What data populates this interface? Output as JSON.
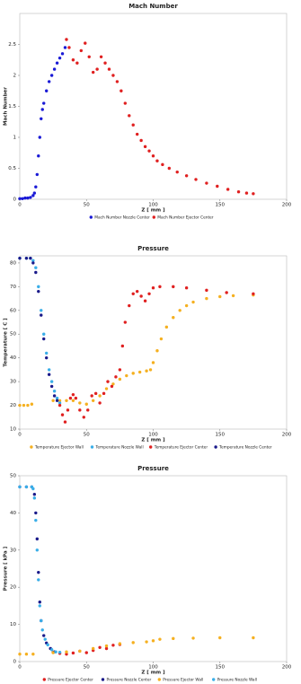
{
  "chart_data": [
    {
      "type": "scatter",
      "title": "Mach Number",
      "xlabel": "Z [ mm ]",
      "ylabel": "Mach Number",
      "xlim": [
        0,
        200
      ],
      "ylim": [
        0,
        3
      ],
      "xticks": [
        0,
        50,
        100,
        150,
        200
      ],
      "yticks": [
        0,
        0.5,
        1,
        1.5,
        2,
        2.5
      ],
      "series": [
        {
          "name": "Mach Number Nozzle Center",
          "color": "#1a1ad6",
          "x": [
            0,
            2,
            4,
            6,
            8,
            10,
            11,
            12,
            13,
            14,
            15,
            16,
            17,
            18,
            20,
            22,
            24,
            26,
            28,
            30,
            32,
            34
          ],
          "y": [
            0.01,
            0.01,
            0.02,
            0.02,
            0.03,
            0.06,
            0.1,
            0.2,
            0.4,
            0.7,
            1.0,
            1.3,
            1.45,
            1.55,
            1.75,
            1.9,
            2.0,
            2.1,
            2.2,
            2.28,
            2.35,
            2.45
          ]
        },
        {
          "name": "Mach Number Ejector Center",
          "color": "#e02020",
          "x": [
            35,
            37,
            40,
            43,
            46,
            49,
            52,
            55,
            58,
            61,
            64,
            67,
            70,
            73,
            76,
            79,
            82,
            85,
            88,
            91,
            94,
            97,
            100,
            103,
            107,
            112,
            118,
            125,
            132,
            140,
            148,
            156,
            164,
            170,
            175
          ],
          "y": [
            2.58,
            2.45,
            2.25,
            2.2,
            2.4,
            2.52,
            2.3,
            2.05,
            2.1,
            2.3,
            2.2,
            2.1,
            2.0,
            1.9,
            1.75,
            1.55,
            1.35,
            1.2,
            1.05,
            0.95,
            0.85,
            0.78,
            0.7,
            0.62,
            0.56,
            0.5,
            0.44,
            0.38,
            0.32,
            0.26,
            0.21,
            0.16,
            0.12,
            0.1,
            0.09
          ]
        }
      ]
    },
    {
      "type": "scatter",
      "title": "Pressure",
      "xlabel": "Z [ mm ]",
      "ylabel": "Temperature [ C ]",
      "xlim": [
        0,
        200
      ],
      "ylim": [
        10,
        83
      ],
      "xticks": [
        0,
        50,
        100,
        150,
        200
      ],
      "yticks": [
        10,
        20,
        30,
        40,
        50,
        60,
        70,
        80
      ],
      "series": [
        {
          "name": "Temperature Ejector Wall",
          "color": "#f5b020",
          "x": [
            0,
            3,
            6,
            9,
            25,
            30,
            35,
            40,
            45,
            50,
            55,
            60,
            65,
            70,
            75,
            80,
            85,
            90,
            95,
            98,
            100,
            103,
            106,
            110,
            115,
            120,
            125,
            130,
            140,
            150,
            160,
            175
          ],
          "y": [
            20,
            20,
            20,
            20.5,
            22,
            22,
            22,
            22,
            21,
            20.5,
            22,
            24,
            27,
            29,
            31,
            32.5,
            33.5,
            34,
            34.5,
            35,
            38,
            43,
            48,
            53,
            57,
            60,
            62,
            63.5,
            65,
            65.8,
            66.2,
            66.5
          ]
        },
        {
          "name": "Temperature Nozzle Wall",
          "color": "#3aaee8",
          "x": [
            0,
            5,
            8,
            10,
            12,
            14,
            16,
            18,
            20,
            22,
            24,
            26,
            28,
            30
          ],
          "y": [
            82,
            82,
            82,
            81,
            78,
            70,
            60,
            50,
            42,
            35,
            30,
            26,
            23,
            21
          ]
        },
        {
          "name": "Temperature Ejector Center",
          "color": "#e02020",
          "x": [
            30,
            32,
            34,
            36,
            38,
            40,
            42,
            45,
            48,
            51,
            54,
            57,
            60,
            63,
            66,
            69,
            72,
            75,
            77,
            79,
            82,
            85,
            88,
            91,
            94,
            97,
            100,
            105,
            115,
            125,
            140,
            155,
            175
          ],
          "y": [
            20,
            16,
            13,
            18,
            23,
            24.5,
            23,
            18,
            15,
            18,
            24,
            25,
            21,
            25,
            30,
            28,
            32,
            35,
            45,
            55,
            62,
            67,
            68,
            66,
            64,
            67,
            69.5,
            70,
            70,
            69.5,
            68.5,
            67.5,
            67
          ]
        },
        {
          "name": "Temperature Nozzle Center",
          "color": "#1a1a8a",
          "x": [
            0,
            5,
            8,
            10,
            12,
            14,
            16,
            18,
            20,
            22,
            24,
            26,
            28
          ],
          "y": [
            82,
            82,
            82,
            80,
            76,
            68,
            58,
            48,
            40,
            33,
            28,
            24,
            22
          ]
        }
      ]
    },
    {
      "type": "scatter",
      "title": "Pressure",
      "xlabel": "Z [ mm ]",
      "ylabel": "Pressure [ kPa ]",
      "xlim": [
        0,
        200
      ],
      "ylim": [
        0,
        50
      ],
      "xticks": [
        0,
        50,
        100,
        150,
        200
      ],
      "yticks": [
        0,
        10,
        20,
        30,
        40,
        50
      ],
      "series": [
        {
          "name": "Pressure Ejector Center",
          "color": "#e02020",
          "x": [
            25,
            30,
            35,
            40,
            45,
            50,
            55,
            60,
            65,
            70,
            75
          ],
          "y": [
            2.5,
            2.2,
            2,
            2.3,
            2.8,
            2.4,
            3,
            3.8,
            3.5,
            4.4,
            4.6
          ]
        },
        {
          "name": "Pressure Nozzle Center",
          "color": "#1a1a8a",
          "x": [
            0,
            5,
            9,
            11,
            12,
            13,
            14,
            15,
            16,
            18,
            20,
            23,
            26
          ],
          "y": [
            47,
            47,
            47,
            45,
            40,
            33,
            24,
            16,
            11,
            7,
            5,
            3.5,
            2.6
          ]
        },
        {
          "name": "Pressure Ejector Wall",
          "color": "#f5b020",
          "x": [
            0,
            5,
            10,
            25,
            35,
            45,
            55,
            65,
            75,
            85,
            95,
            100,
            105,
            115,
            130,
            150,
            175
          ],
          "y": [
            2,
            2,
            2,
            2.4,
            2.6,
            2.8,
            3.5,
            4.2,
            4.8,
            5.1,
            5.3,
            5.6,
            6,
            6.2,
            6.3,
            6.4,
            6.4
          ]
        },
        {
          "name": "Pressure Nozzle Wall",
          "color": "#3aaee8",
          "x": [
            0,
            5,
            9,
            10,
            11,
            12,
            13,
            14,
            15,
            16,
            17,
            19,
            21,
            24,
            27,
            30
          ],
          "y": [
            47,
            47,
            47,
            46.5,
            44,
            38,
            30,
            22,
            15,
            11,
            8.5,
            6,
            4.5,
            3.2,
            2.6,
            2.5
          ]
        }
      ]
    }
  ]
}
